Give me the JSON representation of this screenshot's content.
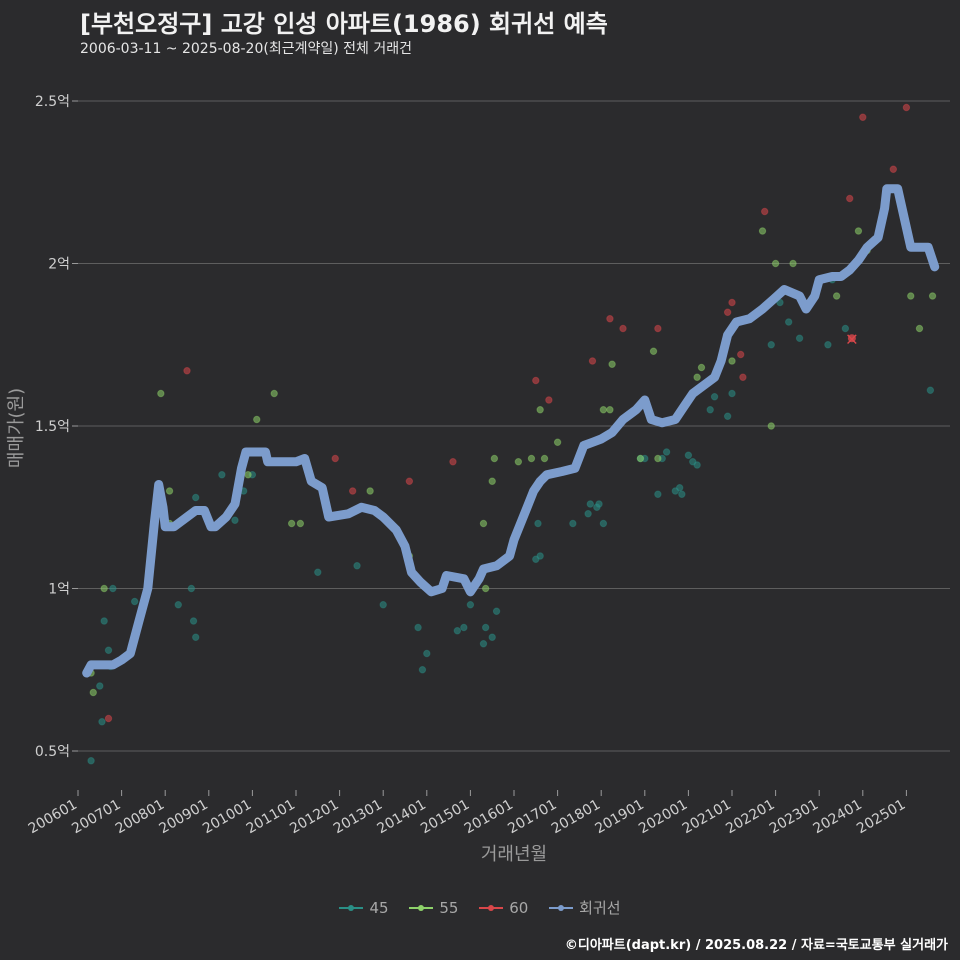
{
  "header": {
    "title": "[부천오정구] 고강 인성 아파트(1986) 회귀선 예측",
    "subtitle": "2006-03-11 ~ 2025-08-20(최근계약일) 전체 거래건"
  },
  "footer": {
    "credit": "©디아파트(dapt.kr) / 2025.08.22 / 자료=국토교통부 실거래가"
  },
  "colors": {
    "background": "#2b2b2d",
    "grid": "#5e5e5e",
    "s45": "#2a8f86",
    "s55": "#8ed26a",
    "s60": "#d9474a",
    "regression": "#7c9ccc"
  },
  "chart_data": {
    "type": "scatter",
    "title": "[부천오정구] 고강 인성 아파트(1986) 회귀선 예측",
    "xlabel": "거래년월",
    "ylabel": "매매가(원)",
    "ylim": [
      0.38,
      2.62
    ],
    "xlim": [
      2006.0,
      2026.0
    ],
    "y_ticks": [
      {
        "value": 0.5,
        "label": "0.5억"
      },
      {
        "value": 1.0,
        "label": "1억"
      },
      {
        "value": 1.5,
        "label": "1.5억"
      },
      {
        "value": 2.0,
        "label": "2억"
      },
      {
        "value": 2.5,
        "label": "2.5억"
      }
    ],
    "x_ticks": [
      {
        "value": 2006,
        "label": "200601"
      },
      {
        "value": 2007,
        "label": "200701"
      },
      {
        "value": 2008,
        "label": "200801"
      },
      {
        "value": 2009,
        "label": "200901"
      },
      {
        "value": 2010,
        "label": "201001"
      },
      {
        "value": 2011,
        "label": "201101"
      },
      {
        "value": 2012,
        "label": "201201"
      },
      {
        "value": 2013,
        "label": "201301"
      },
      {
        "value": 2014,
        "label": "201401"
      },
      {
        "value": 2015,
        "label": "201501"
      },
      {
        "value": 2016,
        "label": "201601"
      },
      {
        "value": 2017,
        "label": "201701"
      },
      {
        "value": 2018,
        "label": "201801"
      },
      {
        "value": 2019,
        "label": "201901"
      },
      {
        "value": 2020,
        "label": "202001"
      },
      {
        "value": 2021,
        "label": "202101"
      },
      {
        "value": 2022,
        "label": "202201"
      },
      {
        "value": 2023,
        "label": "202301"
      },
      {
        "value": 2024,
        "label": "202401"
      },
      {
        "value": 2025,
        "label": "202501"
      }
    ],
    "legend": [
      {
        "key": "45",
        "label": "45"
      },
      {
        "key": "55",
        "label": "55"
      },
      {
        "key": "60",
        "label": "60"
      },
      {
        "key": "reg",
        "label": "회귀선"
      }
    ],
    "series": [
      {
        "name": "45",
        "points": [
          [
            2006.3,
            0.47
          ],
          [
            2006.5,
            0.7
          ],
          [
            2006.55,
            0.59
          ],
          [
            2006.6,
            0.9
          ],
          [
            2006.8,
            1.0
          ],
          [
            2006.7,
            0.81
          ],
          [
            2006.75,
            0.76
          ],
          [
            2007.3,
            0.96
          ],
          [
            2008.3,
            0.95
          ],
          [
            2008.6,
            1.0
          ],
          [
            2008.65,
            0.9
          ],
          [
            2008.7,
            0.85
          ],
          [
            2008.7,
            1.28
          ],
          [
            2009.3,
            1.35
          ],
          [
            2009.6,
            1.21
          ],
          [
            2009.8,
            1.3
          ],
          [
            2010.0,
            1.35
          ],
          [
            2011.5,
            1.05
          ],
          [
            2012.4,
            1.07
          ],
          [
            2013.0,
            0.95
          ],
          [
            2013.8,
            0.88
          ],
          [
            2013.9,
            0.75
          ],
          [
            2014.0,
            0.8
          ],
          [
            2014.7,
            0.87
          ],
          [
            2014.85,
            0.88
          ],
          [
            2015.0,
            0.95
          ],
          [
            2015.3,
            0.83
          ],
          [
            2015.35,
            0.88
          ],
          [
            2015.5,
            0.85
          ],
          [
            2015.6,
            0.93
          ],
          [
            2016.5,
            1.09
          ],
          [
            2016.55,
            1.2
          ],
          [
            2016.6,
            1.1
          ],
          [
            2017.35,
            1.2
          ],
          [
            2017.7,
            1.23
          ],
          [
            2017.75,
            1.26
          ],
          [
            2017.9,
            1.25
          ],
          [
            2017.95,
            1.26
          ],
          [
            2018.05,
            1.2
          ],
          [
            2018.9,
            1.4
          ],
          [
            2019.0,
            1.4
          ],
          [
            2019.3,
            1.29
          ],
          [
            2019.4,
            1.4
          ],
          [
            2019.5,
            1.42
          ],
          [
            2019.7,
            1.3
          ],
          [
            2019.8,
            1.31
          ],
          [
            2019.85,
            1.29
          ],
          [
            2020.0,
            1.41
          ],
          [
            2020.1,
            1.39
          ],
          [
            2020.2,
            1.38
          ],
          [
            2020.5,
            1.55
          ],
          [
            2020.6,
            1.59
          ],
          [
            2020.9,
            1.53
          ],
          [
            2021.0,
            1.6
          ],
          [
            2021.9,
            1.75
          ],
          [
            2022.1,
            1.88
          ],
          [
            2022.3,
            1.82
          ],
          [
            2022.55,
            1.77
          ],
          [
            2023.2,
            1.75
          ],
          [
            2023.3,
            1.95
          ],
          [
            2023.6,
            1.8
          ],
          [
            2025.55,
            1.61
          ]
        ]
      },
      {
        "name": "55",
        "points": [
          [
            2006.3,
            0.74
          ],
          [
            2006.35,
            0.68
          ],
          [
            2006.6,
            1.0
          ],
          [
            2007.9,
            1.6
          ],
          [
            2008.1,
            1.3
          ],
          [
            2008.1,
            1.2
          ],
          [
            2009.9,
            1.35
          ],
          [
            2010.1,
            1.52
          ],
          [
            2010.5,
            1.6
          ],
          [
            2010.9,
            1.2
          ],
          [
            2011.1,
            1.2
          ],
          [
            2012.7,
            1.3
          ],
          [
            2013.6,
            1.1
          ],
          [
            2015.3,
            1.2
          ],
          [
            2015.35,
            1.0
          ],
          [
            2015.5,
            1.33
          ],
          [
            2015.55,
            1.4
          ],
          [
            2016.1,
            1.39
          ],
          [
            2016.4,
            1.4
          ],
          [
            2016.6,
            1.55
          ],
          [
            2016.7,
            1.4
          ],
          [
            2017.0,
            1.45
          ],
          [
            2018.05,
            1.55
          ],
          [
            2018.2,
            1.55
          ],
          [
            2018.25,
            1.69
          ],
          [
            2018.9,
            1.4
          ],
          [
            2019.2,
            1.73
          ],
          [
            2019.3,
            1.4
          ],
          [
            2020.2,
            1.65
          ],
          [
            2020.3,
            1.68
          ],
          [
            2021.0,
            1.7
          ],
          [
            2021.7,
            2.1
          ],
          [
            2021.9,
            1.5
          ],
          [
            2022.0,
            2.0
          ],
          [
            2022.4,
            2.0
          ],
          [
            2023.4,
            1.9
          ],
          [
            2023.9,
            2.1
          ],
          [
            2024.1,
            2.04
          ],
          [
            2025.1,
            1.9
          ],
          [
            2025.3,
            1.8
          ],
          [
            2025.6,
            1.9
          ]
        ]
      },
      {
        "name": "60",
        "points": [
          [
            2006.7,
            0.6
          ],
          [
            2008.5,
            1.67
          ],
          [
            2011.9,
            1.4
          ],
          [
            2012.3,
            1.3
          ],
          [
            2013.6,
            1.33
          ],
          [
            2014.6,
            1.39
          ],
          [
            2016.5,
            1.64
          ],
          [
            2016.8,
            1.58
          ],
          [
            2017.8,
            1.7
          ],
          [
            2018.2,
            1.83
          ],
          [
            2018.5,
            1.8
          ],
          [
            2019.3,
            1.8
          ],
          [
            2020.9,
            1.85
          ],
          [
            2021.0,
            1.88
          ],
          [
            2021.2,
            1.72
          ],
          [
            2021.25,
            1.65
          ],
          [
            2021.75,
            2.16
          ],
          [
            2023.7,
            2.2
          ],
          [
            2024.0,
            2.45
          ],
          [
            2024.7,
            2.29
          ],
          [
            2025.0,
            2.48
          ]
        ]
      }
    ],
    "highlight": {
      "x": 2023.75,
      "y": 1.77,
      "label": "×"
    },
    "regression": [
      [
        2006.2,
        0.74
      ],
      [
        2006.3,
        0.765
      ],
      [
        2006.8,
        0.765
      ],
      [
        2007.0,
        0.78
      ],
      [
        2007.2,
        0.8
      ],
      [
        2007.4,
        0.9
      ],
      [
        2007.6,
        1.0
      ],
      [
        2007.75,
        1.2
      ],
      [
        2007.85,
        1.32
      ],
      [
        2007.95,
        1.25
      ],
      [
        2008.0,
        1.19
      ],
      [
        2008.2,
        1.19
      ],
      [
        2008.5,
        1.22
      ],
      [
        2008.7,
        1.24
      ],
      [
        2008.9,
        1.24
      ],
      [
        2009.05,
        1.19
      ],
      [
        2009.15,
        1.19
      ],
      [
        2009.4,
        1.22
      ],
      [
        2009.6,
        1.26
      ],
      [
        2009.75,
        1.37
      ],
      [
        2009.85,
        1.42
      ],
      [
        2010.3,
        1.42
      ],
      [
        2010.35,
        1.39
      ],
      [
        2011.0,
        1.39
      ],
      [
        2011.2,
        1.4
      ],
      [
        2011.35,
        1.33
      ],
      [
        2011.6,
        1.31
      ],
      [
        2011.75,
        1.22
      ],
      [
        2012.2,
        1.23
      ],
      [
        2012.5,
        1.25
      ],
      [
        2012.8,
        1.24
      ],
      [
        2013.0,
        1.22
      ],
      [
        2013.3,
        1.18
      ],
      [
        2013.5,
        1.13
      ],
      [
        2013.65,
        1.05
      ],
      [
        2013.85,
        1.02
      ],
      [
        2014.1,
        0.99
      ],
      [
        2014.35,
        1.0
      ],
      [
        2014.45,
        1.04
      ],
      [
        2014.85,
        1.03
      ],
      [
        2015.0,
        0.99
      ],
      [
        2015.2,
        1.03
      ],
      [
        2015.3,
        1.06
      ],
      [
        2015.6,
        1.07
      ],
      [
        2015.9,
        1.1
      ],
      [
        2016.0,
        1.15
      ],
      [
        2016.3,
        1.25
      ],
      [
        2016.45,
        1.3
      ],
      [
        2016.6,
        1.33
      ],
      [
        2016.75,
        1.35
      ],
      [
        2017.1,
        1.36
      ],
      [
        2017.4,
        1.37
      ],
      [
        2017.6,
        1.44
      ],
      [
        2017.8,
        1.45
      ],
      [
        2018.0,
        1.46
      ],
      [
        2018.25,
        1.48
      ],
      [
        2018.5,
        1.52
      ],
      [
        2018.8,
        1.55
      ],
      [
        2019.0,
        1.58
      ],
      [
        2019.15,
        1.52
      ],
      [
        2019.4,
        1.51
      ],
      [
        2019.7,
        1.52
      ],
      [
        2019.9,
        1.56
      ],
      [
        2020.1,
        1.6
      ],
      [
        2020.3,
        1.62
      ],
      [
        2020.6,
        1.65
      ],
      [
        2020.75,
        1.7
      ],
      [
        2020.9,
        1.78
      ],
      [
        2021.1,
        1.82
      ],
      [
        2021.4,
        1.83
      ],
      [
        2021.7,
        1.86
      ],
      [
        2021.95,
        1.89
      ],
      [
        2022.2,
        1.92
      ],
      [
        2022.55,
        1.9
      ],
      [
        2022.7,
        1.86
      ],
      [
        2022.9,
        1.9
      ],
      [
        2023.0,
        1.95
      ],
      [
        2023.3,
        1.96
      ],
      [
        2023.5,
        1.96
      ],
      [
        2023.7,
        1.98
      ],
      [
        2023.9,
        2.01
      ],
      [
        2024.1,
        2.05
      ],
      [
        2024.35,
        2.08
      ],
      [
        2024.5,
        2.17
      ],
      [
        2024.55,
        2.23
      ],
      [
        2024.8,
        2.23
      ],
      [
        2025.1,
        2.05
      ],
      [
        2025.5,
        2.05
      ],
      [
        2025.65,
        1.99
      ]
    ]
  }
}
